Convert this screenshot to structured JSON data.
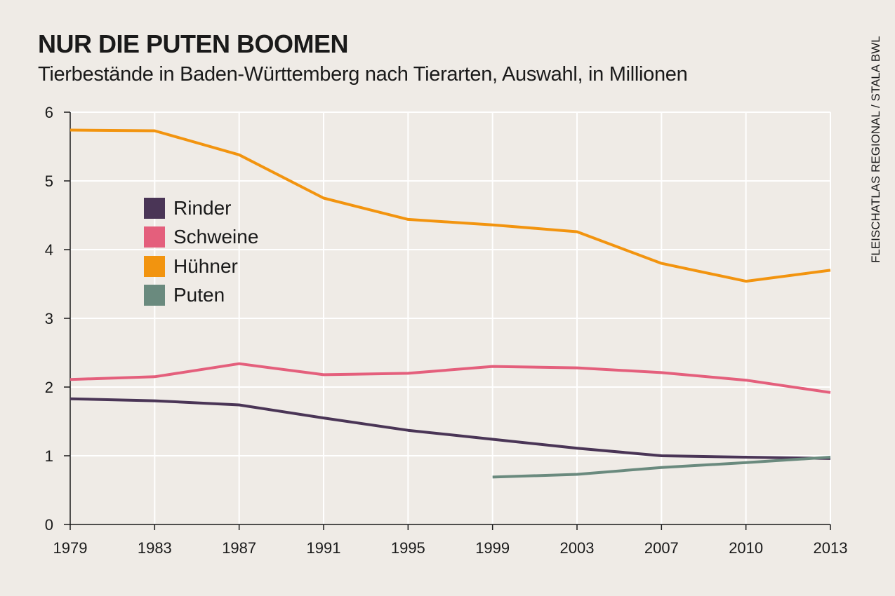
{
  "header": {
    "title": "NUR DIE PUTEN BOOMEN",
    "subtitle": "Tierbestände in Baden-Württemberg nach Tierarten, Auswahl, in Millionen",
    "source": "FLEISCHATLAS REGIONAL / STALA BWL"
  },
  "chart_data": {
    "type": "line",
    "title": "NUR DIE PUTEN BOOMEN",
    "subtitle": "Tierbestände in Baden-Württemberg nach Tierarten, Auswahl, in Millionen",
    "xlabel": "",
    "ylabel": "",
    "categories": [
      "1979",
      "1983",
      "1987",
      "1991",
      "1995",
      "1999",
      "2003",
      "2007",
      "2010",
      "2013"
    ],
    "yticks": [
      "0",
      "1",
      "2",
      "3",
      "4",
      "5",
      "6"
    ],
    "ylim": [
      0,
      6
    ],
    "grid": true,
    "legend_position": "upper-left",
    "series": [
      {
        "name": "Rinder",
        "color": "#4a3556",
        "values": [
          1.83,
          1.8,
          1.74,
          1.55,
          1.37,
          1.24,
          1.11,
          1.0,
          0.98,
          0.96
        ]
      },
      {
        "name": "Schweine",
        "color": "#e45f7c",
        "values": [
          2.11,
          2.15,
          2.34,
          2.18,
          2.2,
          2.3,
          2.28,
          2.21,
          2.1,
          1.92
        ]
      },
      {
        "name": "Hühner",
        "color": "#f2940f",
        "values": [
          5.74,
          5.73,
          5.38,
          4.75,
          4.44,
          4.36,
          4.26,
          3.8,
          3.54,
          3.7
        ]
      },
      {
        "name": "Puten",
        "color": "#6a8a7e",
        "values": [
          null,
          null,
          null,
          null,
          null,
          0.69,
          0.73,
          0.83,
          0.9,
          0.98
        ]
      }
    ]
  }
}
